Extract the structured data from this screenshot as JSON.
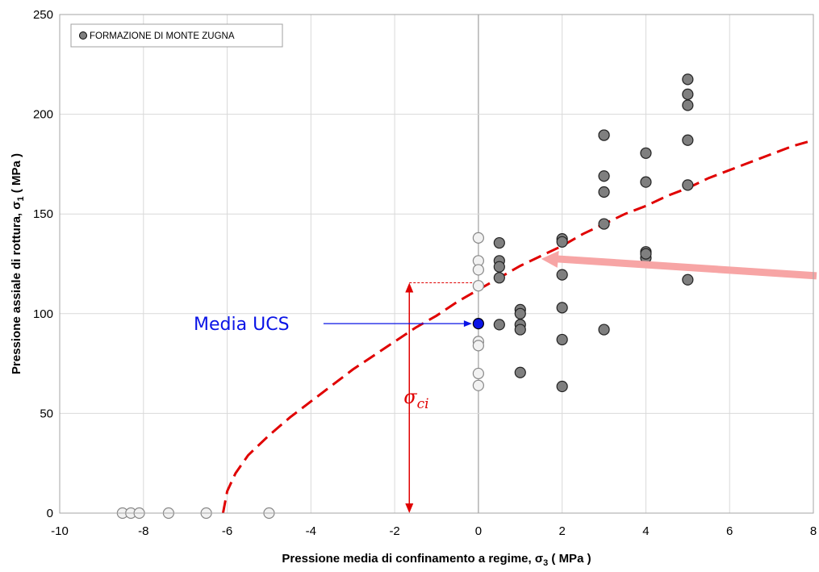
{
  "chart_data": {
    "type": "scatter",
    "title": "",
    "xlabel_main": "Pressione media di confinamento a regime, σ",
    "xlabel_sub": "3",
    "xlabel_unit": "  ( MPa )",
    "ylabel_main": "Pressione assiale di rottura, σ",
    "ylabel_sub": "1",
    "ylabel_unit": "  ( MPa )",
    "xlim": [
      -10,
      8
    ],
    "ylim": [
      0,
      250
    ],
    "xticks": [
      -10,
      -8,
      -6,
      -4,
      -2,
      0,
      2,
      4,
      6,
      8
    ],
    "yticks": [
      0,
      50,
      100,
      150,
      200,
      250
    ],
    "grid": true,
    "legend_position": "top-left",
    "series": [
      {
        "name": "FORMAZIONE DI MONTE ZUGNA",
        "color": "#7f7f7f",
        "x": [
          0.5,
          0.5,
          0.5,
          0.5,
          0.5,
          1,
          1,
          1,
          1,
          1,
          2,
          2,
          2,
          2,
          2,
          2,
          3,
          3,
          3,
          3,
          3,
          3,
          4,
          4,
          4,
          4,
          4,
          5,
          5,
          5,
          5,
          5,
          5
        ],
        "y": [
          135.5,
          126.5,
          123.5,
          118,
          94.5,
          102,
          100,
          94.5,
          92,
          70.5,
          137.5,
          136,
          119.5,
          103,
          87,
          63.5,
          189.5,
          169,
          161,
          145,
          92,
          189.5,
          180.5,
          166,
          131,
          128,
          130,
          217.5,
          210,
          204.5,
          187,
          164.5,
          117
        ]
      },
      {
        "name": "",
        "color": "#f2f2f2",
        "x": [
          0,
          0,
          0,
          0,
          0,
          0,
          0,
          0,
          -8.5,
          -8.3,
          -8.1,
          -7.4,
          -6.5,
          -5.0
        ],
        "y": [
          138,
          126.5,
          122,
          114,
          86,
          84,
          70,
          64,
          0,
          0,
          0,
          0,
          0,
          0
        ]
      }
    ],
    "highlight_point": {
      "label": "Media UCS",
      "x": 0,
      "y": 95,
      "color": "#0a14e6"
    },
    "envelope_curve": {
      "style": "dashed",
      "color": "#e00000",
      "x": [
        -6.1,
        -6.0,
        -5.8,
        -5.5,
        -5.0,
        -4.5,
        -4.0,
        -3.5,
        -3.0,
        -2.5,
        -2.0,
        -1.5,
        -1.0,
        -0.5,
        0,
        0.5,
        1,
        1.5,
        2,
        2.5,
        3,
        3.5,
        4,
        4.5,
        5,
        5.5,
        6,
        6.5,
        7,
        7.5,
        8
      ],
      "y": [
        0,
        11,
        20,
        29,
        39,
        48,
        56,
        64,
        72,
        79,
        86,
        93,
        99,
        106,
        112,
        118,
        124,
        129,
        134,
        140,
        145,
        150,
        154,
        159,
        163,
        168,
        172,
        176,
        180,
        184,
        187
      ]
    },
    "sigma_ci": {
      "label": "σ",
      "sub": "ci",
      "x": -1.65,
      "y": 115.5,
      "color": "#e00000"
    }
  }
}
